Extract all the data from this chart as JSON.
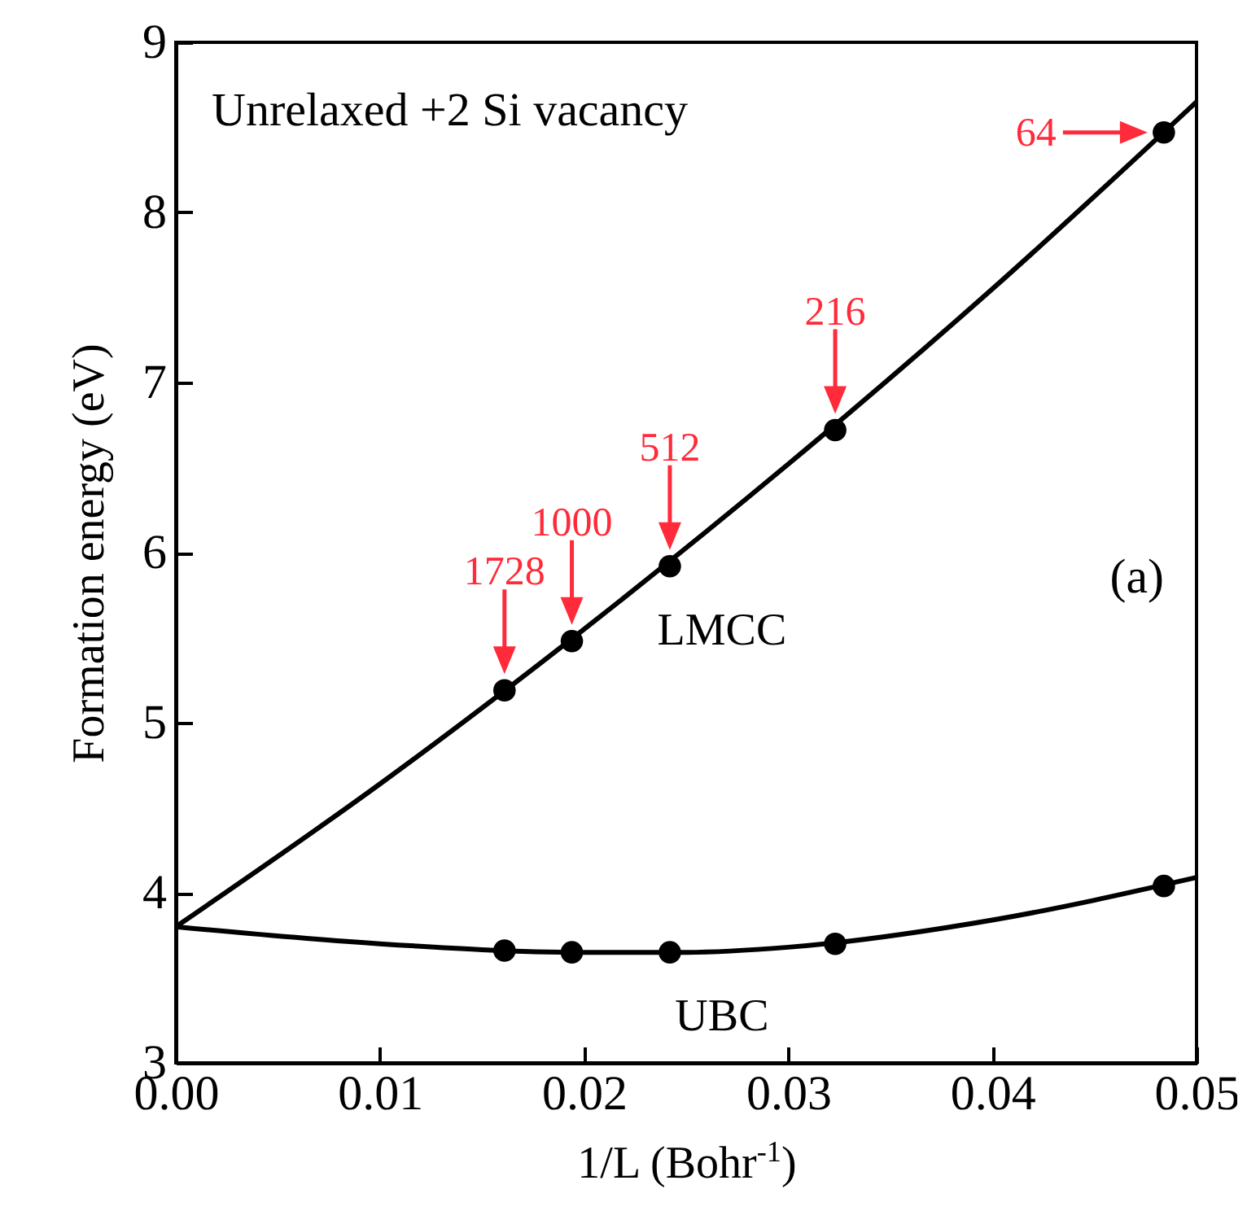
{
  "chart_data": {
    "type": "scatter",
    "title": "Unrelaxed +2 Si vacancy",
    "xlabel": "1/L (Bohr$^{-1}$)",
    "ylabel": "Formation energy (eV)",
    "xlim": [
      0,
      0.05
    ],
    "xticks": [
      {
        "value": 0,
        "label": "0.00"
      },
      0.01,
      0.02,
      0.03,
      0.04,
      0.05
    ],
    "ylim": [
      3,
      9
    ],
    "yticks": [
      3,
      4,
      5,
      6,
      7,
      8,
      9
    ],
    "marker": "circle",
    "annotations": [
      "(a)",
      {
        "text": "1728",
        "x": 0.0161,
        "y": 5.19
      },
      {
        "text": "1000",
        "x": 0.0194,
        "y": 5.48
      },
      {
        "text": "512",
        "x": 0.0242,
        "y": 5.92
      },
      {
        "text": "216",
        "x": 0.0323,
        "y": 6.72
      },
      {
        "text": "64",
        "x": 0.0484,
        "y": 8.47
      }
    ],
    "series": [
      {
        "type": "line",
        "marker": "none",
        "color": "#000000",
        "x": [
          0,
          0.01,
          0.02,
          0.03,
          0.04,
          0.05
        ],
        "values": [
          3.8,
          4.64,
          5.55,
          6.52,
          7.55,
          8.65
        ]
      },
      {
        "type": "line",
        "marker": "none",
        "color": "#000000",
        "x": [
          0,
          0.01,
          0.02,
          0.025,
          0.03,
          0.04,
          0.05
        ],
        "values": [
          3.8,
          3.7,
          3.65,
          3.65,
          3.68,
          3.84,
          4.09
        ]
      },
      {
        "name": "LMCC",
        "color": "#000000",
        "x": [
          0.0161,
          0.0194,
          0.0242,
          0.0323,
          0.0484
        ],
        "values": [
          5.19,
          5.48,
          5.92,
          6.72,
          8.47
        ]
      },
      {
        "name": "UBC",
        "color": "#000000",
        "x": [
          0.0161,
          0.0194,
          0.0242,
          0.0323,
          0.0484
        ],
        "values": [
          3.66,
          3.65,
          3.65,
          3.7,
          4.04
        ]
      }
    ]
  }
}
